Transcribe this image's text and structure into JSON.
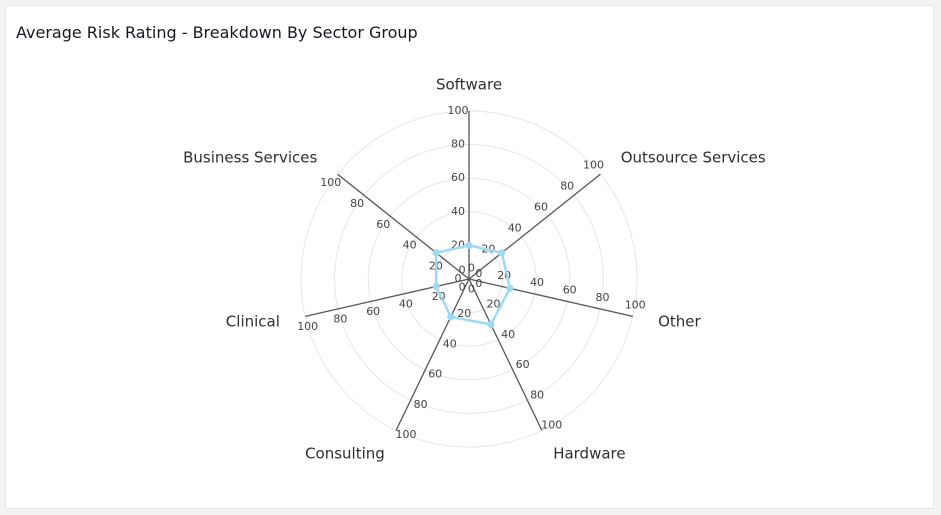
{
  "chart_title": "Average Risk Rating - Breakdown By Sector Group",
  "chart_data": {
    "type": "radar",
    "title": "Average Risk Rating - Breakdown By Sector Group",
    "categories": [
      "Software",
      "Outsource Services",
      "Other",
      "Hardware",
      "Consulting",
      "Clinical",
      "Business Services"
    ],
    "series": [
      {
        "name": "Average Risk Rating",
        "values": [
          20,
          25,
          25,
          30,
          25,
          20,
          25
        ],
        "color": "#9dd9f3"
      }
    ],
    "rlim": [
      0,
      100
    ],
    "ticks": [
      "0",
      "20",
      "40",
      "60",
      "80",
      "100"
    ]
  }
}
